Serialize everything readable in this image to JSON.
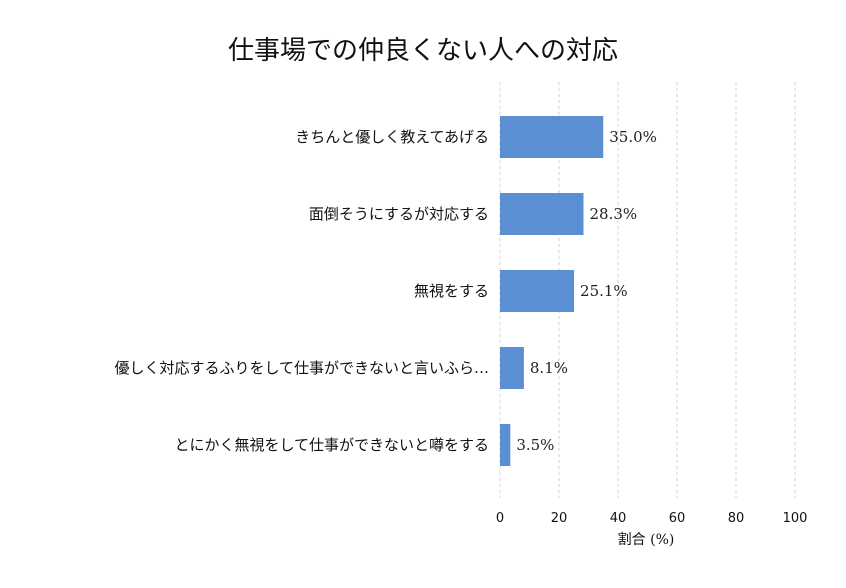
{
  "chart_data": {
    "type": "bar",
    "orientation": "horizontal",
    "title": "仕事場での仲良くない人への対応",
    "xlabel": "割合 (%)",
    "categories": [
      "きちんと優しく教えてあげる",
      "面倒そうにするが対応する",
      "無視をする",
      "優しく対応するふりをして仕事ができないと言いふら…",
      "とにかく無視をして仕事ができないと噂をする"
    ],
    "values": [
      35.0,
      28.3,
      25.1,
      8.1,
      3.5
    ],
    "value_labels": [
      "35.0%",
      "28.3%",
      "25.1%",
      "8.1%",
      "3.5%"
    ],
    "xlim": [
      0,
      100
    ],
    "xticks": [
      0,
      20,
      40,
      60,
      80,
      100
    ],
    "grid": "vertical dashed",
    "bar_color": "#5b8fd4"
  }
}
